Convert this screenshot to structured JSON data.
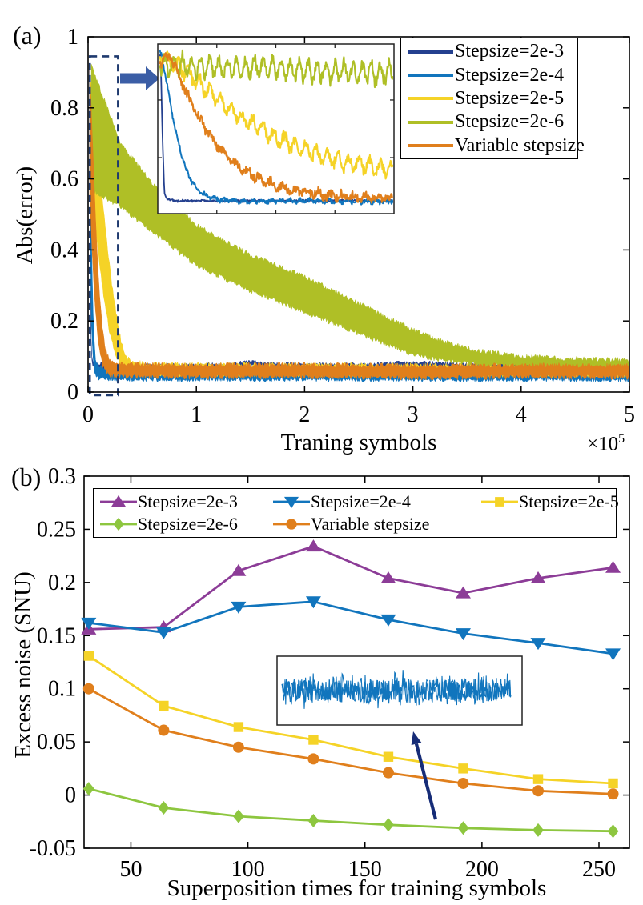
{
  "figure_caption_labels": {
    "panel_a": "(a)",
    "panel_b": "(b)"
  },
  "chart_data": [
    {
      "type": "line",
      "panel_label": "(a)",
      "xlabel": "Traning symbols",
      "ylabel": "Abs(error)",
      "x_mult_base": "×10",
      "x_mult_exp": "5",
      "xlim": [
        0,
        5
      ],
      "ylim": [
        0,
        1
      ],
      "xtick_values": [
        0,
        1,
        2,
        3,
        4,
        5
      ],
      "xtick_labels": [
        "0",
        "1",
        "2",
        "3",
        "4",
        "5"
      ],
      "ytick_values": [
        0,
        0.2,
        0.4,
        0.6,
        0.8,
        1
      ],
      "ytick_labels": [
        "0",
        "0.2",
        "0.4",
        "0.6",
        "0.8",
        "1"
      ],
      "legend_position": "upper right",
      "grid": false,
      "series": [
        {
          "name": "Stepsize=2e-3",
          "color": "#24408F",
          "style": "band-center",
          "halfwidth": 0.006,
          "jitter": 0.005,
          "center": [
            [
              0.012,
              0.92
            ],
            [
              0.02,
              0.3
            ],
            [
              0.03,
              0.1
            ],
            [
              0.05,
              0.076
            ],
            [
              0.3,
              0.072
            ],
            [
              1.0,
              0.071
            ],
            [
              1.3,
              0.074
            ],
            [
              1.5,
              0.081
            ],
            [
              1.7,
              0.075
            ],
            [
              2.0,
              0.072
            ],
            [
              2.6,
              0.073
            ],
            [
              2.9,
              0.077
            ],
            [
              3.2,
              0.077
            ],
            [
              3.5,
              0.073
            ],
            [
              4.2,
              0.072
            ],
            [
              5,
              0.072
            ]
          ]
        },
        {
          "name": "Stepsize=2e-4",
          "color": "#1175BD",
          "style": "band",
          "jitter": 0.006,
          "upper": [
            [
              0.015,
              0.9
            ],
            [
              0.03,
              0.45
            ],
            [
              0.05,
              0.18
            ],
            [
              0.07,
              0.09
            ],
            [
              0.1,
              0.072
            ],
            [
              0.2,
              0.068
            ],
            [
              5,
              0.066
            ]
          ],
          "lower": [
            [
              0.015,
              0.6
            ],
            [
              0.03,
              0.2
            ],
            [
              0.05,
              0.07
            ],
            [
              0.07,
              0.045
            ],
            [
              0.1,
              0.038
            ],
            [
              0.2,
              0.035
            ],
            [
              5,
              0.034
            ]
          ]
        },
        {
          "name": "Stepsize=2e-5",
          "color": "#F5D327",
          "style": "band",
          "jitter": 0.008,
          "upper": [
            [
              0.02,
              0.88
            ],
            [
              0.06,
              0.8
            ],
            [
              0.1,
              0.66
            ],
            [
              0.14,
              0.52
            ],
            [
              0.18,
              0.4
            ],
            [
              0.22,
              0.3
            ],
            [
              0.26,
              0.22
            ],
            [
              0.3,
              0.15
            ],
            [
              0.34,
              0.105
            ],
            [
              0.4,
              0.085
            ],
            [
              0.55,
              0.078
            ],
            [
              5,
              0.072
            ]
          ],
          "lower": [
            [
              0.02,
              0.55
            ],
            [
              0.06,
              0.48
            ],
            [
              0.1,
              0.38
            ],
            [
              0.14,
              0.28
            ],
            [
              0.18,
              0.2
            ],
            [
              0.22,
              0.14
            ],
            [
              0.26,
              0.1
            ],
            [
              0.3,
              0.075
            ],
            [
              0.34,
              0.062
            ],
            [
              0.4,
              0.055
            ],
            [
              0.55,
              0.05
            ],
            [
              5,
              0.048
            ]
          ]
        },
        {
          "name": "Stepsize=2e-6",
          "color": "#AFBF26",
          "style": "band",
          "jitter": 0.007,
          "upper": [
            [
              0.03,
              0.92
            ],
            [
              0.3,
              0.7
            ],
            [
              0.6,
              0.585
            ],
            [
              1.0,
              0.47
            ],
            [
              1.5,
              0.385
            ],
            [
              2.0,
              0.325
            ],
            [
              2.5,
              0.25
            ],
            [
              3.0,
              0.175
            ],
            [
              3.3,
              0.14
            ],
            [
              3.6,
              0.117
            ],
            [
              4.0,
              0.1
            ],
            [
              4.5,
              0.094
            ],
            [
              5.0,
              0.09
            ]
          ],
          "lower": [
            [
              0.03,
              0.57
            ],
            [
              0.3,
              0.52
            ],
            [
              0.6,
              0.45
            ],
            [
              1.0,
              0.355
            ],
            [
              1.5,
              0.285
            ],
            [
              2.0,
              0.225
            ],
            [
              2.5,
              0.165
            ],
            [
              3.0,
              0.105
            ],
            [
              3.3,
              0.088
            ],
            [
              3.6,
              0.077
            ],
            [
              4.0,
              0.07
            ],
            [
              4.5,
              0.065
            ],
            [
              5.0,
              0.062
            ]
          ]
        },
        {
          "name": "Variable stepsize",
          "color": "#E07F1C",
          "style": "band",
          "jitter": 0.007,
          "upper": [
            [
              0.015,
              0.92
            ],
            [
              0.04,
              0.72
            ],
            [
              0.07,
              0.48
            ],
            [
              0.1,
              0.3
            ],
            [
              0.13,
              0.185
            ],
            [
              0.16,
              0.12
            ],
            [
              0.2,
              0.09
            ],
            [
              0.3,
              0.08
            ],
            [
              1.0,
              0.076
            ],
            [
              2.0,
              0.077
            ],
            [
              3.0,
              0.074
            ],
            [
              4.0,
              0.076
            ],
            [
              5,
              0.075
            ]
          ],
          "lower": [
            [
              0.015,
              0.55
            ],
            [
              0.04,
              0.38
            ],
            [
              0.07,
              0.22
            ],
            [
              0.1,
              0.13
            ],
            [
              0.13,
              0.08
            ],
            [
              0.16,
              0.058
            ],
            [
              0.2,
              0.047
            ],
            [
              0.3,
              0.044
            ],
            [
              1.0,
              0.042
            ],
            [
              2.0,
              0.043
            ],
            [
              3.0,
              0.04
            ],
            [
              4.0,
              0.042
            ],
            [
              5,
              0.042
            ]
          ]
        }
      ],
      "zoom_region_box": {
        "x0": 0.02,
        "x1": 0.28,
        "y0": 0.0,
        "y1": 0.945
      },
      "inset": {
        "x_range_note": "zoom of first ~0.3e5 training symbols",
        "series": [
          {
            "name": "Stepsize=2e-3",
            "color": "#24408F",
            "osc_amp": 0,
            "osc_period": 0.05,
            "jitter": 0.007,
            "width": 1.8,
            "base": [
              [
                0.012,
                0.93
              ],
              [
                0.02,
                0.45
              ],
              [
                0.028,
                0.12
              ],
              [
                0.04,
                0.085
              ],
              [
                0.08,
                0.075
              ],
              [
                1,
                0.075
              ]
            ]
          },
          {
            "name": "Stepsize=2e-4",
            "color": "#1175BD",
            "osc_amp": 0.01,
            "osc_period": 0.04,
            "jitter": 0.012,
            "width": 2,
            "base": [
              [
                0.015,
                0.95
              ],
              [
                0.04,
                0.75
              ],
              [
                0.07,
                0.52
              ],
              [
                0.1,
                0.35
              ],
              [
                0.13,
                0.22
              ],
              [
                0.17,
                0.14
              ],
              [
                0.22,
                0.095
              ],
              [
                0.28,
                0.08
              ],
              [
                0.35,
                0.075
              ],
              [
                1,
                0.072
              ]
            ]
          },
          {
            "name": "Stepsize=2e-5",
            "color": "#F5D327",
            "osc_amp": 0.05,
            "osc_period": 0.045,
            "jitter": 0.028,
            "width": 2.2,
            "base": [
              [
                0.02,
                0.92
              ],
              [
                0.08,
                0.88
              ],
              [
                0.15,
                0.8
              ],
              [
                0.25,
                0.68
              ],
              [
                0.35,
                0.57
              ],
              [
                0.5,
                0.45
              ],
              [
                0.65,
                0.36
              ],
              [
                0.8,
                0.3
              ],
              [
                1,
                0.255
              ]
            ]
          },
          {
            "name": "Stepsize=2e-6",
            "color": "#AFBF26",
            "osc_amp": 0.07,
            "osc_period": 0.038,
            "jitter": 0.03,
            "width": 2.2,
            "base": [
              [
                0.02,
                0.88
              ],
              [
                0.1,
                0.87
              ],
              [
                0.3,
                0.865
              ],
              [
                0.6,
                0.845
              ],
              [
                1,
                0.825
              ]
            ]
          },
          {
            "name": "Variable stepsize",
            "color": "#E07F1C",
            "osc_amp": 0.02,
            "osc_period": 0.05,
            "jitter": 0.025,
            "width": 2.2,
            "base": [
              [
                0.01,
                0.88
              ],
              [
                0.05,
                0.93
              ],
              [
                0.09,
                0.82
              ],
              [
                0.13,
                0.68
              ],
              [
                0.18,
                0.55
              ],
              [
                0.24,
                0.42
              ],
              [
                0.32,
                0.3
              ],
              [
                0.42,
                0.21
              ],
              [
                0.55,
                0.145
              ],
              [
                0.7,
                0.11
              ],
              [
                0.85,
                0.095
              ],
              [
                1,
                0.088
              ]
            ]
          }
        ]
      }
    },
    {
      "type": "line",
      "panel_label": "(b)",
      "xlabel": "Superposition times for training symbols",
      "ylabel": "Excess noise (SNU)",
      "xlim": [
        30,
        263
      ],
      "ylim": [
        -0.05,
        0.3
      ],
      "xtick_values": [
        50,
        100,
        150,
        200,
        250
      ],
      "xtick_labels": [
        "50",
        "100",
        "150",
        "200",
        "250"
      ],
      "ytick_values": [
        -0.05,
        0,
        0.05,
        0.1,
        0.15,
        0.2,
        0.25,
        0.3
      ],
      "ytick_labels": [
        "-0.05",
        "0",
        "0.05",
        "0.1",
        "0.15",
        "0.2",
        "0.25",
        "0.3"
      ],
      "legend_position": "upper left, 2 rows",
      "grid": false,
      "x": [
        32,
        64,
        96,
        128,
        160,
        192,
        224,
        256
      ],
      "series": [
        {
          "name": "Stepsize=2e-3",
          "color": "#8C3C97",
          "marker": "triangle-up",
          "values": [
            0.156,
            0.158,
            0.211,
            0.234,
            0.204,
            0.19,
            0.204,
            0.214
          ]
        },
        {
          "name": "Stepsize=2e-4",
          "color": "#1175BD",
          "marker": "triangle-down",
          "values": [
            0.162,
            0.153,
            0.177,
            0.182,
            0.165,
            0.152,
            0.143,
            0.133
          ]
        },
        {
          "name": "Stepsize=2e-5",
          "color": "#F5D327",
          "marker": "square",
          "values": [
            0.131,
            0.084,
            0.064,
            0.052,
            0.036,
            0.025,
            0.015,
            0.011
          ]
        },
        {
          "name": "Stepsize=2e-6",
          "color": "#8DC63F",
          "marker": "diamond",
          "values": [
            0.006,
            -0.012,
            -0.02,
            -0.024,
            -0.028,
            -0.031,
            -0.033,
            -0.034
          ]
        },
        {
          "name": "Variable stepsize",
          "color": "#E07F1C",
          "marker": "circle",
          "values": [
            0.1,
            0.061,
            0.045,
            0.034,
            0.021,
            0.011,
            0.004,
            0.001
          ]
        }
      ],
      "inset": {
        "color": "#1175BD",
        "description": "noisy converged error trace pointed at by navy arrow"
      }
    }
  ]
}
